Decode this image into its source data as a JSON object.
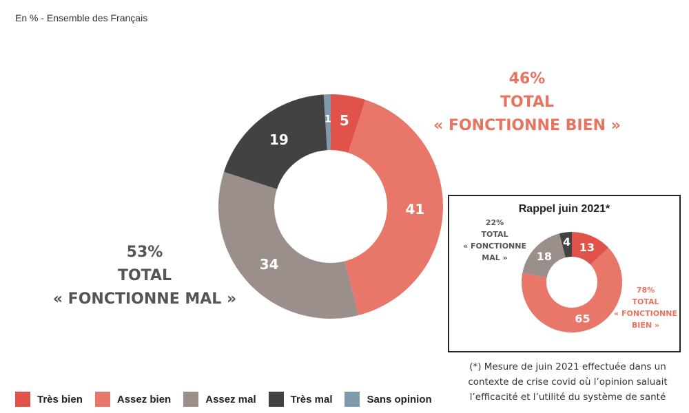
{
  "subtitle": "En % - Ensemble des Français",
  "colors": {
    "tres_bien": "#e0524a",
    "assez_bien": "#e8776a",
    "assez_mal": "#9b8f8b",
    "tres_mal": "#424242",
    "sans_opinion": "#7f9aaa",
    "good_total": "#e8735f",
    "bad_total": "#555555"
  },
  "main_totals": {
    "good": [
      "46%",
      "TOTAL",
      "« FONCTIONNE BIEN »"
    ],
    "bad": [
      "53%",
      "TOTAL",
      "« FONCTIONNE MAL »"
    ]
  },
  "inset": {
    "title": "Rappel juin 2021*",
    "good": [
      "78%",
      "TOTAL",
      "« FONCTIONNE",
      "BIEN »"
    ],
    "bad": [
      "22%",
      "TOTAL",
      "« FONCTIONNE",
      "MAL »"
    ]
  },
  "footnote": [
    "(*) Mesure de juin 2021 effectuée dans un",
    "contexte de crise covid où l’opinion saluait",
    "l’efficacité et l’utilité du système de santé"
  ],
  "legend": [
    {
      "label": "Très bien",
      "color": "#e0524a"
    },
    {
      "label": "Assez bien",
      "color": "#e8776a"
    },
    {
      "label": "Assez mal",
      "color": "#9b8f8b"
    },
    {
      "label": "Très mal",
      "color": "#424242"
    },
    {
      "label": "Sans opinion",
      "color": "#7f9aaa"
    }
  ],
  "chart_data": [
    {
      "type": "pie",
      "categories": [
        "Très bien",
        "Assez bien",
        "Assez mal",
        "Très mal",
        "Sans opinion"
      ],
      "values": [
        5,
        41,
        34,
        19,
        1
      ],
      "labels": [
        "5",
        "41",
        "34",
        "19",
        "1"
      ],
      "colors": [
        "#e0524a",
        "#e8776a",
        "#9b8f8b",
        "#424242",
        "#7f9aaa"
      ]
    },
    {
      "type": "pie",
      "title": "Rappel juin 2021*",
      "categories": [
        "Très bien",
        "Assez bien",
        "Assez mal",
        "Très mal"
      ],
      "values": [
        13,
        65,
        18,
        4
      ],
      "labels": [
        "13",
        "65",
        "18",
        "4"
      ],
      "colors": [
        "#e0524a",
        "#e8776a",
        "#9b8f8b",
        "#424242"
      ]
    }
  ]
}
